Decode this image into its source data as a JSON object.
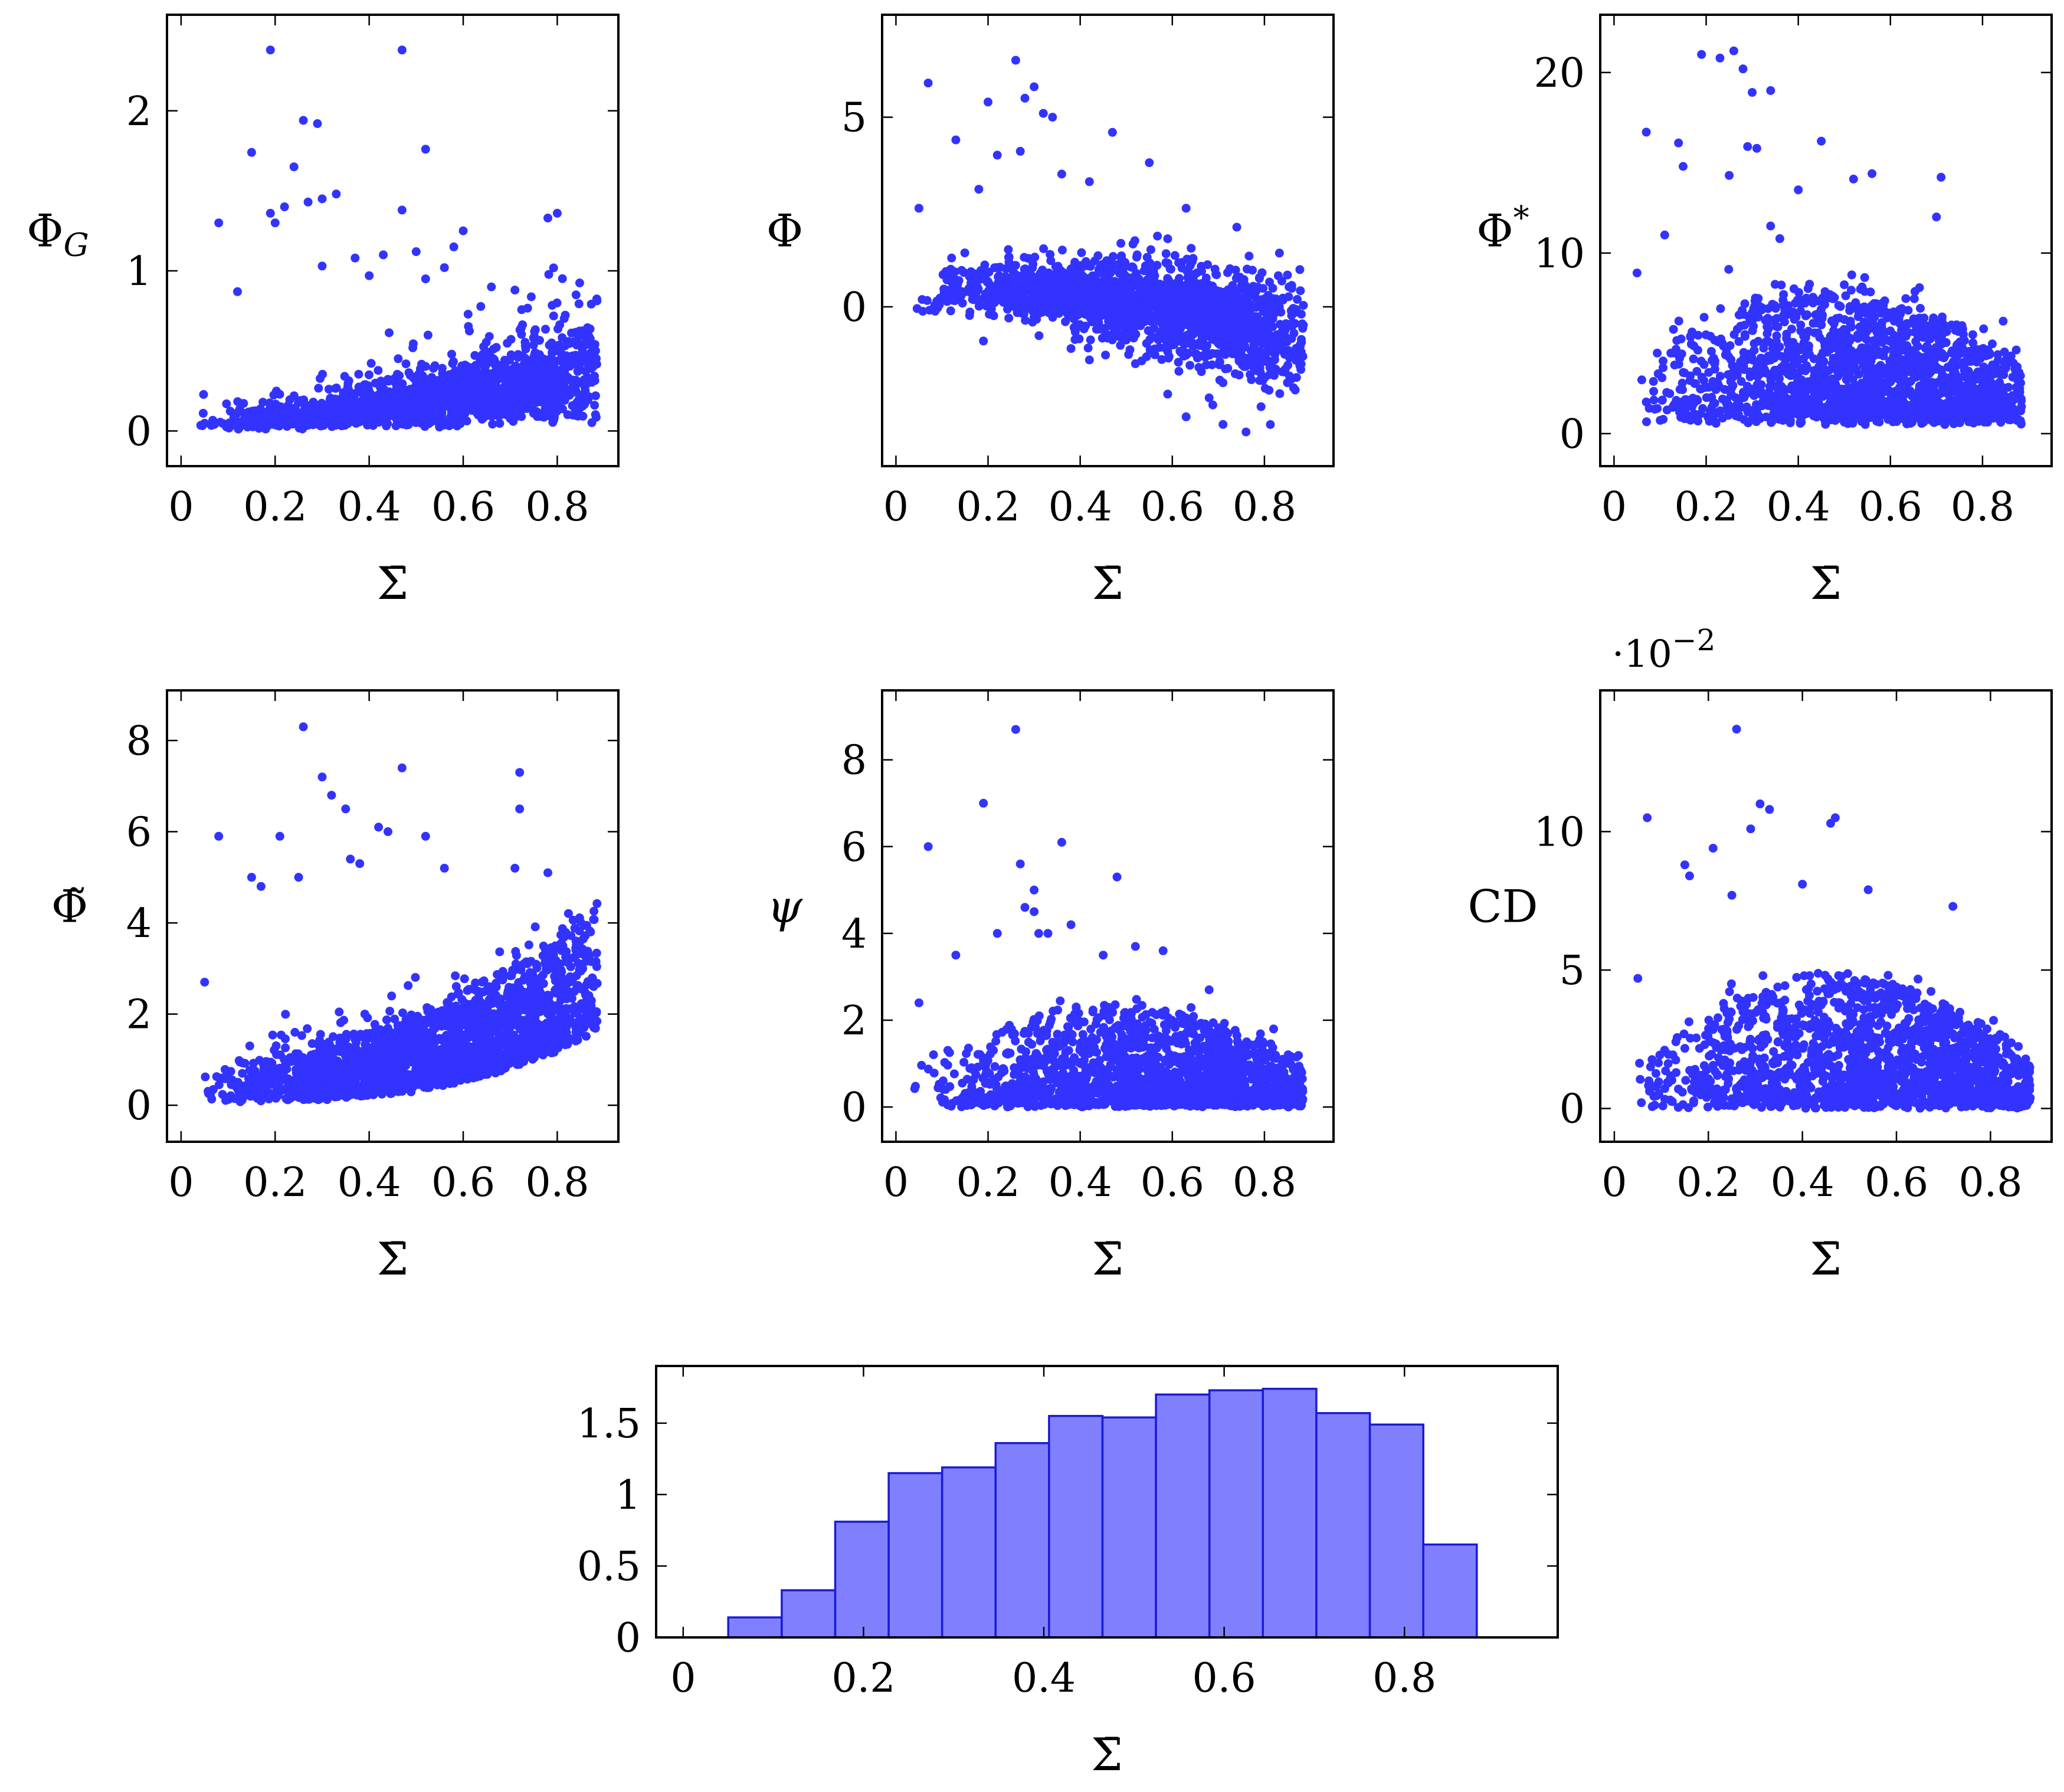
{
  "colors": {
    "marker": "#3333ff",
    "bar_fill": "#8080ff",
    "bar_edge": "#1a1ad6"
  },
  "chart_data": [
    {
      "type": "scatter",
      "xlabel": "Σ̄",
      "ylabel": "Φ_G",
      "ylabel_main": "Φ",
      "ylabel_sub": "G",
      "xlim": [
        -0.03,
        0.93
      ],
      "ylim": [
        -0.22,
        2.6
      ],
      "xticks": [
        0,
        0.2,
        0.4,
        0.6,
        0.8
      ],
      "xtick_labels": [
        "0",
        "0.2",
        "0.4",
        "0.6",
        "0.8"
      ],
      "yticks": [
        0,
        1,
        2
      ],
      "ytick_labels": [
        "0",
        "1",
        "2"
      ],
      "dist": "phiG",
      "n_dense": 1600,
      "outliers": [
        [
          0.19,
          2.38
        ],
        [
          0.47,
          2.38
        ],
        [
          0.26,
          1.94
        ],
        [
          0.29,
          1.92
        ],
        [
          0.52,
          1.76
        ],
        [
          0.15,
          1.74
        ],
        [
          0.24,
          1.65
        ],
        [
          0.33,
          1.48
        ],
        [
          0.3,
          1.45
        ],
        [
          0.27,
          1.43
        ],
        [
          0.22,
          1.4
        ],
        [
          0.19,
          1.36
        ],
        [
          0.78,
          1.33
        ],
        [
          0.8,
          1.36
        ],
        [
          0.47,
          1.38
        ],
        [
          0.6,
          1.25
        ],
        [
          0.58,
          1.15
        ],
        [
          0.43,
          1.1
        ],
        [
          0.5,
          1.12
        ],
        [
          0.37,
          1.08
        ],
        [
          0.2,
          1.3
        ],
        [
          0.08,
          1.3
        ],
        [
          0.12,
          0.87
        ],
        [
          0.52,
          0.95
        ],
        [
          0.66,
          0.9
        ],
        [
          0.71,
          0.88
        ],
        [
          0.84,
          0.85
        ],
        [
          0.4,
          0.97
        ],
        [
          0.3,
          1.03
        ],
        [
          0.56,
          1.02
        ]
      ]
    },
    {
      "type": "scatter",
      "xlabel": "Σ̄",
      "ylabel": "Φ",
      "xlim": [
        -0.03,
        0.95
      ],
      "ylim": [
        -4.2,
        7.7
      ],
      "xticks": [
        0,
        0.2,
        0.4,
        0.6,
        0.8
      ],
      "xtick_labels": [
        "0",
        "0.2",
        "0.4",
        "0.6",
        "0.8"
      ],
      "yticks": [
        0,
        5
      ],
      "ytick_labels": [
        "0",
        "5"
      ],
      "dist": "phi",
      "n_dense": 1800,
      "outliers": [
        [
          0.26,
          6.5
        ],
        [
          0.3,
          5.8
        ],
        [
          0.07,
          5.9
        ],
        [
          0.2,
          5.4
        ],
        [
          0.32,
          5.1
        ],
        [
          0.34,
          5.0
        ],
        [
          0.28,
          5.5
        ],
        [
          0.47,
          4.6
        ],
        [
          0.13,
          4.4
        ],
        [
          0.22,
          4.0
        ],
        [
          0.27,
          4.1
        ],
        [
          0.55,
          3.8
        ],
        [
          0.36,
          3.5
        ],
        [
          0.05,
          2.6
        ],
        [
          0.18,
          3.1
        ],
        [
          0.42,
          3.3
        ],
        [
          0.63,
          2.6
        ],
        [
          0.74,
          2.1
        ],
        [
          0.19,
          -0.9
        ],
        [
          0.38,
          -1.1
        ],
        [
          0.42,
          -1.4
        ],
        [
          0.52,
          -1.5
        ],
        [
          0.59,
          -2.3
        ],
        [
          0.63,
          -2.9
        ],
        [
          0.71,
          -3.1
        ],
        [
          0.76,
          -3.3
        ],
        [
          0.81,
          -2.2
        ],
        [
          0.85,
          -2.0
        ],
        [
          0.68,
          -2.4
        ]
      ]
    },
    {
      "type": "scatter",
      "xlabel": "Σ̄",
      "ylabel": "Φ*",
      "ylabel_main": "Φ",
      "ylabel_sup": "*",
      "xlim": [
        -0.03,
        0.95
      ],
      "ylim": [
        -1.8,
        23.2
      ],
      "xticks": [
        0,
        0.2,
        0.4,
        0.6,
        0.8
      ],
      "xtick_labels": [
        "0",
        "0.2",
        "0.4",
        "0.6",
        "0.8"
      ],
      "yticks": [
        0,
        10,
        20
      ],
      "ytick_labels": [
        "0",
        "10",
        "20"
      ],
      "dist": "phistar",
      "n_dense": 1800,
      "outliers": [
        [
          0.19,
          21.0
        ],
        [
          0.26,
          21.2
        ],
        [
          0.23,
          20.8
        ],
        [
          0.28,
          20.2
        ],
        [
          0.3,
          18.9
        ],
        [
          0.34,
          19.0
        ],
        [
          0.07,
          16.7
        ],
        [
          0.14,
          16.1
        ],
        [
          0.45,
          16.2
        ],
        [
          0.29,
          15.9
        ],
        [
          0.31,
          15.8
        ],
        [
          0.15,
          14.8
        ],
        [
          0.56,
          14.4
        ],
        [
          0.52,
          14.1
        ],
        [
          0.71,
          14.2
        ],
        [
          0.25,
          14.3
        ],
        [
          0.34,
          11.5
        ],
        [
          0.36,
          10.8
        ],
        [
          0.05,
          8.9
        ],
        [
          0.11,
          11.0
        ],
        [
          0.4,
          13.5
        ],
        [
          0.7,
          12.0
        ]
      ]
    },
    {
      "type": "scatter",
      "xlabel": "Σ̄",
      "ylabel": "Φ̃",
      "xlim": [
        -0.03,
        0.93
      ],
      "ylim": [
        -0.8,
        9.1
      ],
      "xticks": [
        0,
        0.2,
        0.4,
        0.6,
        0.8
      ],
      "xtick_labels": [
        "0",
        "0.2",
        "0.4",
        "0.6",
        "0.8"
      ],
      "yticks": [
        0,
        2,
        4,
        6,
        8
      ],
      "ytick_labels": [
        "0",
        "2",
        "4",
        "6",
        "8"
      ],
      "dist": "phitilde",
      "n_dense": 1900,
      "outliers": [
        [
          0.26,
          8.3
        ],
        [
          0.47,
          7.4
        ],
        [
          0.3,
          7.2
        ],
        [
          0.72,
          7.3
        ],
        [
          0.32,
          6.8
        ],
        [
          0.35,
          6.5
        ],
        [
          0.72,
          6.5
        ],
        [
          0.42,
          6.1
        ],
        [
          0.21,
          5.9
        ],
        [
          0.08,
          5.9
        ],
        [
          0.44,
          6.0
        ],
        [
          0.52,
          5.9
        ],
        [
          0.36,
          5.4
        ],
        [
          0.38,
          5.3
        ],
        [
          0.56,
          5.2
        ],
        [
          0.71,
          5.2
        ],
        [
          0.78,
          5.1
        ],
        [
          0.15,
          5.0
        ],
        [
          0.25,
          5.0
        ],
        [
          0.17,
          4.8
        ],
        [
          0.05,
          2.7
        ]
      ]
    },
    {
      "type": "scatter",
      "xlabel": "Σ̄",
      "ylabel": "ψ",
      "xlim": [
        -0.03,
        0.95
      ],
      "ylim": [
        -0.8,
        9.6
      ],
      "xticks": [
        0,
        0.2,
        0.4,
        0.6,
        0.8
      ],
      "xtick_labels": [
        "0",
        "0.2",
        "0.4",
        "0.6",
        "0.8"
      ],
      "yticks": [
        0,
        2,
        4,
        6,
        8
      ],
      "ytick_labels": [
        "0",
        "2",
        "4",
        "6",
        "8"
      ],
      "dist": "psi",
      "n_dense": 1700,
      "outliers": [
        [
          0.26,
          8.7
        ],
        [
          0.19,
          7.0
        ],
        [
          0.07,
          6.0
        ],
        [
          0.36,
          6.1
        ],
        [
          0.27,
          5.6
        ],
        [
          0.48,
          5.3
        ],
        [
          0.3,
          5.0
        ],
        [
          0.28,
          4.6
        ],
        [
          0.3,
          4.5
        ],
        [
          0.22,
          4.0
        ],
        [
          0.31,
          4.0
        ],
        [
          0.33,
          4.0
        ],
        [
          0.38,
          4.2
        ],
        [
          0.45,
          3.5
        ],
        [
          0.52,
          3.7
        ],
        [
          0.58,
          3.6
        ],
        [
          0.13,
          3.5
        ],
        [
          0.05,
          2.4
        ],
        [
          0.68,
          2.7
        ],
        [
          0.82,
          1.8
        ]
      ]
    },
    {
      "type": "scatter",
      "xlabel": "Σ̄",
      "ylabel": "CD",
      "scale_note_main": "·10",
      "scale_note_exp": "−2",
      "xlim": [
        -0.03,
        0.93
      ],
      "ylim": [
        -1.2,
        15.1
      ],
      "xticks": [
        0,
        0.2,
        0.4,
        0.6,
        0.8
      ],
      "xtick_labels": [
        "0",
        "0.2",
        "0.4",
        "0.6",
        "0.8"
      ],
      "yticks": [
        0,
        5,
        10
      ],
      "ytick_labels": [
        "0",
        "5",
        "10"
      ],
      "dist": "cd",
      "n_dense": 1700,
      "outliers": [
        [
          0.26,
          13.7
        ],
        [
          0.31,
          11.0
        ],
        [
          0.33,
          10.8
        ],
        [
          0.29,
          10.1
        ],
        [
          0.07,
          10.5
        ],
        [
          0.47,
          10.5
        ],
        [
          0.46,
          10.3
        ],
        [
          0.21,
          9.4
        ],
        [
          0.15,
          8.8
        ],
        [
          0.16,
          8.4
        ],
        [
          0.4,
          8.1
        ],
        [
          0.54,
          7.9
        ],
        [
          0.72,
          7.3
        ],
        [
          0.25,
          7.7
        ],
        [
          0.05,
          4.7
        ]
      ]
    },
    {
      "type": "bar",
      "subtype": "histogram",
      "xlabel": "Σ̄",
      "ylabel": "",
      "xlim": [
        -0.03,
        0.97
      ],
      "ylim": [
        0,
        1.9
      ],
      "xticks": [
        0,
        0.2,
        0.4,
        0.6,
        0.8
      ],
      "xtick_labels": [
        "0",
        "0.2",
        "0.4",
        "0.6",
        "0.8"
      ],
      "yticks": [
        0,
        0.5,
        1,
        1.5
      ],
      "ytick_labels": [
        "0",
        "0.5",
        "1",
        "1.5"
      ],
      "bin_edges": [
        0.05,
        0.1093,
        0.1686,
        0.2279,
        0.2872,
        0.3465,
        0.4058,
        0.4651,
        0.5244,
        0.5837,
        0.643,
        0.7023,
        0.7616,
        0.8209,
        0.8802
      ],
      "values": [
        0.14,
        0.33,
        0.81,
        1.15,
        1.19,
        1.36,
        1.55,
        1.54,
        1.7,
        1.73,
        1.74,
        1.57,
        1.49,
        0.65
      ]
    }
  ]
}
